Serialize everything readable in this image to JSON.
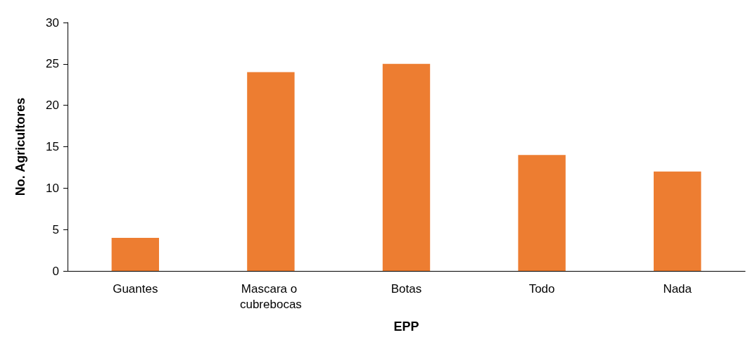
{
  "chart_data": {
    "type": "bar",
    "xlabel": "EPP",
    "ylabel": "No. Agricultores",
    "categories": [
      "Guantes",
      "Mascara o cubrebocas",
      "Botas",
      "Todo",
      "Nada"
    ],
    "values": [
      4,
      24,
      25,
      14,
      12
    ],
    "color": "#ed7d31",
    "ylim": [
      0,
      30
    ],
    "yticks": [
      0,
      5,
      10,
      15,
      20,
      25,
      30
    ],
    "grid": false
  }
}
